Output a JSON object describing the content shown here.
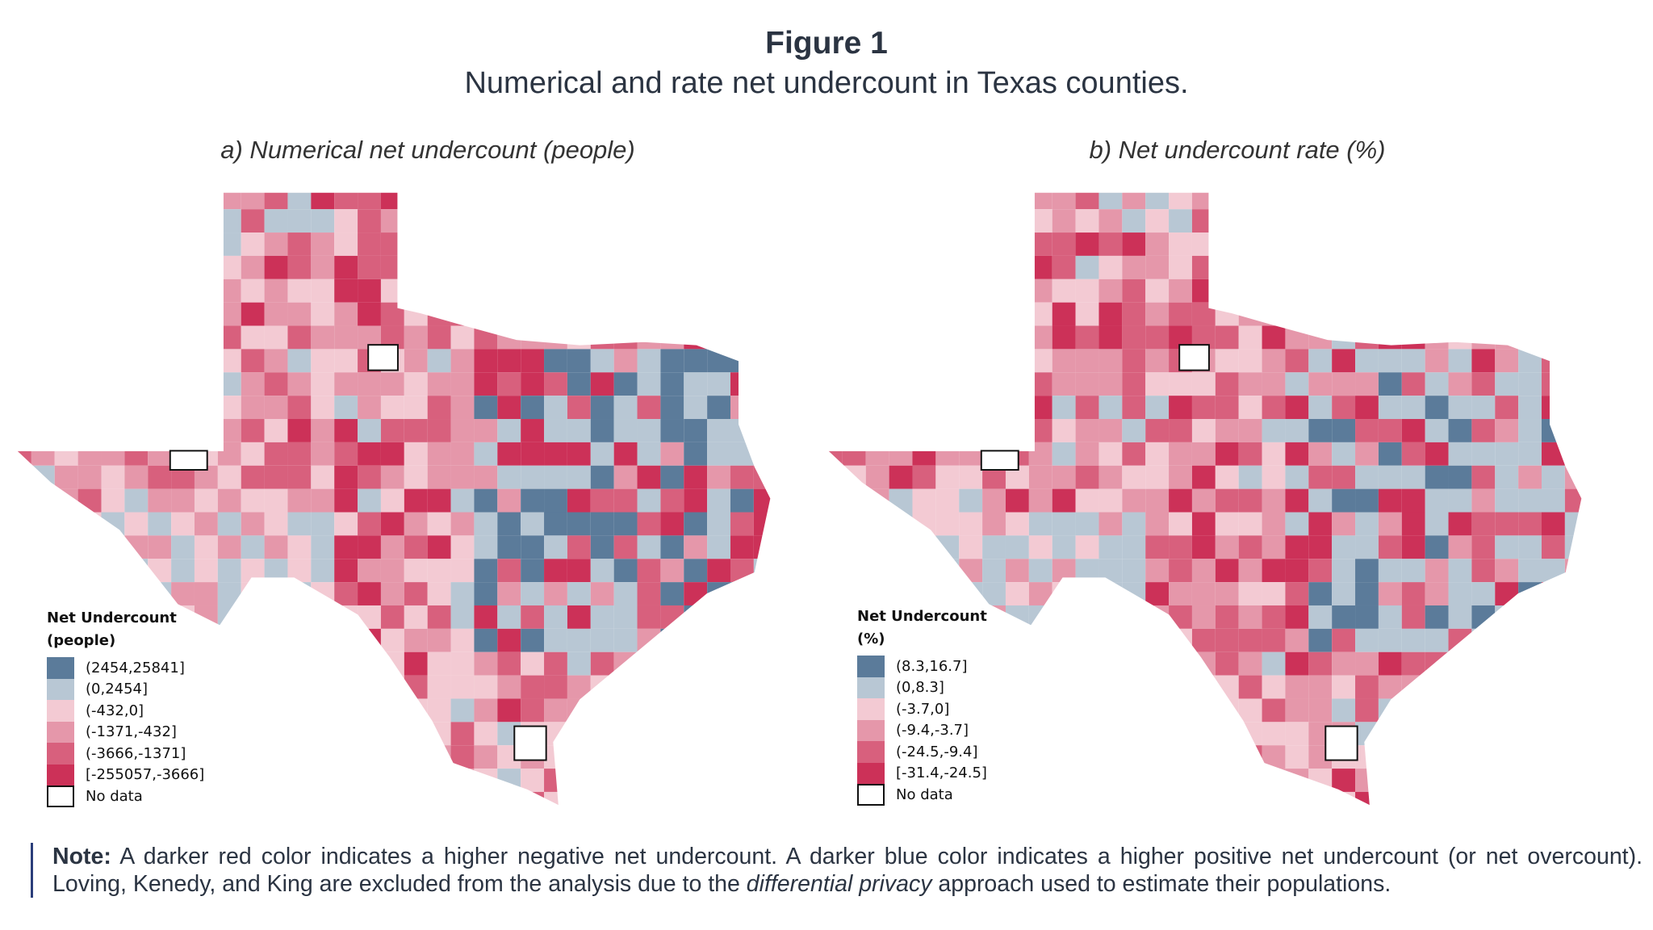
{
  "figure": {
    "label": "Figure 1",
    "title": "Numerical and rate net undercount in Texas counties."
  },
  "colors": [
    "#5b7b9a",
    "#b8c7d4",
    "#f3cad3",
    "#e597aa",
    "#d8607d",
    "#cc3158"
  ],
  "panels": [
    {
      "title": "a) Numerical net undercount (people)",
      "legend": {
        "title_line1": "Net Undercount",
        "title_line2": "(people)",
        "bins": [
          "(2454,25841]",
          "(0,2454]",
          "(-432,0]",
          "(-1371,-432]",
          "(-3666,-1371]",
          "[-255057,-3666]"
        ],
        "no_data": "No data"
      }
    },
    {
      "title": "b) Net undercount rate (%)",
      "legend": {
        "title_line1": "Net Undercount",
        "title_line2": "(%)",
        "bins": [
          "(8.3,16.7]",
          "(0,8.3]",
          "(-3.7,0]",
          "(-9.4,-3.7]",
          "(-24.5,-9.4]",
          "[-31.4,-24.5]"
        ],
        "no_data": "No data"
      }
    }
  ],
  "note": {
    "label": "Note:",
    "text1": " A darker red color indicates a higher negative net undercount. A darker blue color indicates a higher positive net undercount (or net overcount). Loving, Kenedy, and King are excluded from the analysis due to the ",
    "emph": "differential privacy",
    "text2": " approach used to estimate their populations."
  }
}
